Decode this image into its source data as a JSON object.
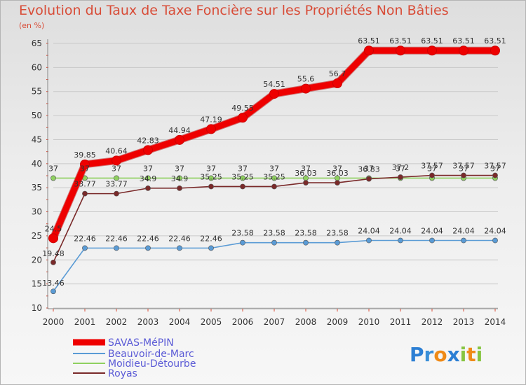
{
  "chart_data": {
    "type": "line",
    "title": "Evolution du Taux de Taxe Foncière sur les Propriétés Non Bâties",
    "ylabel": "(en %)",
    "x": [
      "2000",
      "2001",
      "2002",
      "2003",
      "2004",
      "2005",
      "2006",
      "2007",
      "2008",
      "2009",
      "2010",
      "2011",
      "2012",
      "2013",
      "2014"
    ],
    "yticks": [
      10,
      15,
      20,
      25,
      30,
      35,
      40,
      45,
      50,
      55,
      60,
      65
    ],
    "ylim": [
      10,
      65
    ],
    "grid": "horizontal",
    "legend_position": "bottom-left",
    "series": [
      {
        "name": "SAVAS-MéPIN",
        "color": "#ee0000",
        "values": [
          24.5,
          39.85,
          40.64,
          42.83,
          44.94,
          47.19,
          49.55,
          54.51,
          55.6,
          56.7,
          63.51,
          63.51,
          63.51,
          63.51,
          63.51
        ],
        "labels": [
          "24.5",
          "39.85",
          "40.64",
          "42.83",
          "44.94",
          "47.19",
          "49.55",
          "54.51",
          "55.6",
          "56.7",
          "63.51",
          "63.51",
          "63.51",
          "63.51",
          "63.51"
        ]
      },
      {
        "name": "Beauvoir-de-Marc",
        "color": "#5a9bd5",
        "values": [
          13.46,
          22.46,
          22.46,
          22.46,
          22.46,
          22.46,
          23.58,
          23.58,
          23.58,
          23.58,
          24.04,
          24.04,
          24.04,
          24.04,
          24.04
        ],
        "labels": [
          "13.46",
          "22.46",
          "22.46",
          "22.46",
          "22.46",
          "22.46",
          "23.58",
          "23.58",
          "23.58",
          "23.58",
          "24.04",
          "24.04",
          "24.04",
          "24.04",
          "24.04"
        ]
      },
      {
        "name": "Moidieu-Détourbe",
        "color": "#8fd060",
        "values": [
          37,
          37,
          37,
          37,
          37,
          37,
          37,
          37,
          37,
          37,
          37,
          37,
          37,
          37,
          37
        ],
        "labels": [
          "37",
          "37",
          "37",
          "37",
          "37",
          "37",
          "37",
          "37",
          "37",
          "37",
          "37",
          "37",
          "37",
          "37",
          "37"
        ]
      },
      {
        "name": "Royas",
        "color": "#7a2a2a",
        "values": [
          19.48,
          33.77,
          33.77,
          34.9,
          34.9,
          35.25,
          35.25,
          35.25,
          36.03,
          36.03,
          36.83,
          37.2,
          37.57,
          37.57,
          37.57
        ],
        "labels": [
          "19.48",
          "33.77",
          "33.77",
          "34.9",
          "34.9",
          "35.25",
          "35.25",
          "35.25",
          "36.03",
          "36.03",
          "36.83",
          "37.2",
          "37.57",
          "37.57",
          "37.57"
        ]
      }
    ]
  },
  "logo": {
    "text": "Proxiti",
    "letters": [
      "P",
      "r",
      "o",
      "x",
      "i",
      "t",
      "i"
    ],
    "colors": [
      "#2c7fd4",
      "#3a8fd8",
      "#ef8a17",
      "#2c7fd4",
      "#86c440",
      "#ef8a17",
      "#86c440"
    ]
  }
}
